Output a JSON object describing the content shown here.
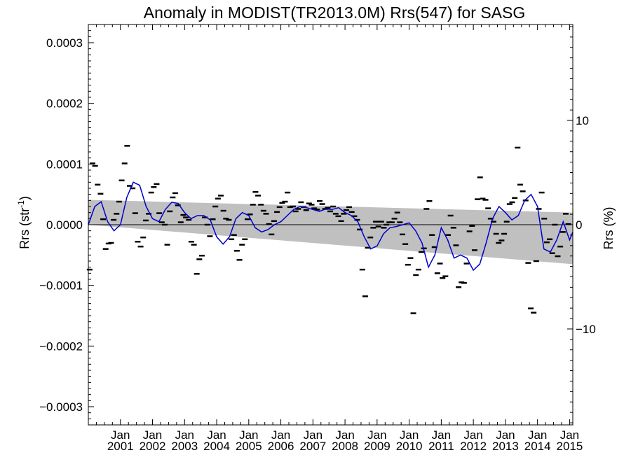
{
  "chart_data": {
    "type": "line",
    "title": "Anomaly in MODIST(TR2013.0M) Rrs(547) for SASG",
    "ylabel_left": "Rrs (str",
    "ylabel_left_sup": "-1",
    "ylabel_left_close": ")",
    "ylabel_right": "Rrs (%)",
    "ylim_left": [
      -0.00033,
      0.00033
    ],
    "ylim_right": [
      -19.2,
      19.2
    ],
    "left_ticks": [
      {
        "value": 0.0003,
        "label": "0.0003"
      },
      {
        "value": 0.0002,
        "label": "0.0002"
      },
      {
        "value": 0.0001,
        "label": "0.0001"
      },
      {
        "value": 0.0,
        "label": "0.0000"
      },
      {
        "value": -0.0001,
        "label": "−0.0001"
      },
      {
        "value": -0.0002,
        "label": "−0.0002"
      },
      {
        "value": -0.0003,
        "label": "−0.0003"
      }
    ],
    "right_ticks": [
      {
        "value": 10,
        "label": "10"
      },
      {
        "value": 0,
        "label": "0"
      },
      {
        "value": -10,
        "label": "−10"
      }
    ],
    "xlim": [
      2000.0,
      2015.1
    ],
    "x_ticks": [
      {
        "year": 2001,
        "month": "Jan",
        "label": "2001"
      },
      {
        "year": 2002,
        "month": "Jan",
        "label": "2002"
      },
      {
        "year": 2003,
        "month": "Jan",
        "label": "2003"
      },
      {
        "year": 2004,
        "month": "Jan",
        "label": "2004"
      },
      {
        "year": 2005,
        "month": "Jan",
        "label": "2005"
      },
      {
        "year": 2006,
        "month": "Jan",
        "label": "2006"
      },
      {
        "year": 2007,
        "month": "Jan",
        "label": "2007"
      },
      {
        "year": 2008,
        "month": "Jan",
        "label": "2008"
      },
      {
        "year": 2009,
        "month": "Jan",
        "label": "2009"
      },
      {
        "year": 2010,
        "month": "Jan",
        "label": "2010"
      },
      {
        "year": 2011,
        "month": "Jan",
        "label": "2011"
      },
      {
        "year": 2012,
        "month": "Jan",
        "label": "2012"
      },
      {
        "year": 2013,
        "month": "Jan",
        "label": "2013"
      },
      {
        "year": 2014,
        "month": "Jan",
        "label": "2014"
      },
      {
        "year": 2015,
        "month": "Jan",
        "label": "2015"
      }
    ],
    "band": {
      "x_start": 2000.0,
      "x_end": 2015.1,
      "upper_start": 4.1e-05,
      "upper_end": 2e-05,
      "lower_start": 0.0,
      "lower_end": -6.5e-05,
      "color": "#c0c0c0"
    },
    "zero_line": 0.0,
    "colors": {
      "smooth_line": "#0000cc",
      "monthly_marks": "#000000",
      "axes": "#000000"
    },
    "series": [
      {
        "kind": "monthly_anomaly",
        "x": [
          2000.04,
          2000.13,
          2000.21,
          2000.29,
          2000.38,
          2000.46,
          2000.54,
          2000.63,
          2000.71,
          2000.79,
          2000.88,
          2000.96,
          2001.04,
          2001.13,
          2001.21,
          2001.29,
          2001.38,
          2001.46,
          2001.54,
          2001.63,
          2001.71,
          2001.79,
          2001.88,
          2001.96,
          2002.04,
          2002.13,
          2002.21,
          2002.29,
          2002.38,
          2002.46,
          2002.54,
          2002.63,
          2002.71,
          2002.79,
          2002.88,
          2002.96,
          2003.04,
          2003.13,
          2003.21,
          2003.29,
          2003.38,
          2003.46,
          2003.54,
          2003.63,
          2003.71,
          2003.79,
          2003.88,
          2003.96,
          2004.04,
          2004.13,
          2004.21,
          2004.29,
          2004.38,
          2004.46,
          2004.54,
          2004.63,
          2004.71,
          2004.79,
          2004.88,
          2004.96,
          2005.04,
          2005.13,
          2005.21,
          2005.29,
          2005.38,
          2005.46,
          2005.54,
          2005.63,
          2005.71,
          2005.79,
          2005.88,
          2005.96,
          2006.04,
          2006.13,
          2006.21,
          2006.29,
          2006.38,
          2006.46,
          2006.54,
          2006.63,
          2006.71,
          2006.79,
          2006.88,
          2006.96,
          2007.04,
          2007.13,
          2007.21,
          2007.29,
          2007.38,
          2007.46,
          2007.54,
          2007.63,
          2007.71,
          2007.79,
          2007.88,
          2007.96,
          2008.04,
          2008.13,
          2008.21,
          2008.29,
          2008.38,
          2008.46,
          2008.54,
          2008.63,
          2008.71,
          2008.79,
          2008.88,
          2008.96,
          2009.04,
          2009.13,
          2009.21,
          2009.29,
          2009.38,
          2009.46,
          2009.54,
          2009.63,
          2009.71,
          2009.79,
          2009.88,
          2009.96,
          2010.04,
          2010.13,
          2010.21,
          2010.29,
          2010.38,
          2010.46,
          2010.54,
          2010.63,
          2010.71,
          2010.79,
          2010.88,
          2010.96,
          2011.04,
          2011.13,
          2011.21,
          2011.29,
          2011.38,
          2011.46,
          2011.54,
          2011.63,
          2011.71,
          2011.79,
          2011.88,
          2011.96,
          2012.04,
          2012.13,
          2012.21,
          2012.29,
          2012.38,
          2012.46,
          2012.54,
          2012.63,
          2012.71,
          2012.79,
          2012.88,
          2012.96,
          2013.04,
          2013.13,
          2013.21,
          2013.29,
          2013.38,
          2013.46,
          2013.54,
          2013.63,
          2013.71,
          2013.79,
          2013.88,
          2013.96,
          2014.04,
          2014.13,
          2014.21,
          2014.29,
          2014.38,
          2014.46,
          2014.54,
          2014.63,
          2014.71,
          2014.79,
          2014.88,
          2014.96
        ],
        "values": [
          -7.4e-05,
          0.000101,
          9.7e-05,
          6.6e-05,
          5.1e-05,
          9e-06,
          -4e-05,
          -3.1e-05,
          -3e-05,
          8e-06,
          1.8e-05,
          3.8e-05,
          7.3e-05,
          0.000101,
          0.00013,
          6.4e-05,
          6e-05,
          1.9e-05,
          -2.8e-05,
          -3.6e-05,
          -2.1e-05,
          7e-06,
          1.8e-05,
          5.3e-05,
          6.2e-05,
          6.7e-05,
          1.9e-05,
          4e-06,
          0.0,
          -3.3e-05,
          2.2e-05,
          4.5e-05,
          5.2e-05,
          3.2e-05,
          4e-06,
          1.6e-05,
          1.2e-05,
          8e-06,
          -2.8e-05,
          -3.3e-05,
          -8.1e-05,
          -5.7e-05,
          -5.1e-05,
          1.2e-05,
          0.0,
          -1.9e-05,
          9e-06,
          3e-05,
          4.3e-05,
          4.8e-05,
          2.3e-05,
          1e-05,
          8e-06,
          -2.4e-05,
          -1.7e-05,
          -4.3e-05,
          -5.8e-05,
          -3.3e-05,
          -2.4e-05,
          9e-06,
          1.7e-05,
          3.3e-05,
          5.4e-05,
          4.8e-05,
          3.3e-05,
          2.3e-05,
          1.8e-05,
          1e-06,
          -1.6e-05,
          6e-06,
          2.1e-05,
          2.9e-05,
          3.6e-05,
          3.8e-05,
          5.3e-05,
          2.9e-05,
          3e-05,
          2.2e-05,
          2.6e-05,
          3.7e-05,
          2.9e-05,
          2.4e-05,
          3.5e-05,
          3.3e-05,
          2.7e-05,
          2.5e-05,
          3.9e-05,
          3.4e-05,
          2.6e-05,
          2.8e-05,
          2.2e-05,
          3e-05,
          1.8e-05,
          1.4e-05,
          6e-06,
          1.8e-05,
          2.4e-05,
          2.9e-05,
          2.1e-05,
          1.4e-05,
          8e-06,
          -8e-06,
          -7.4e-05,
          -0.000118,
          -3.8e-05,
          -2.1e-05,
          -5e-06,
          5e-06,
          -3e-06,
          5e-06,
          -5e-06,
          0.0,
          4e-06,
          4e-06,
          1e-05,
          2e-05,
          4e-06,
          -1.6e-05,
          -3.2e-05,
          -6.6e-05,
          -5.5e-05,
          -0.000146,
          -8.3e-05,
          -7.4e-05,
          -4.5e-05,
          -3.9e-05,
          2.6e-05,
          3.9e-05,
          -1.7e-05,
          -3.7e-05,
          -8e-05,
          -6.4e-05,
          -8.8e-05,
          -8.5e-05,
          -1.7e-05,
          1.5e-05,
          -5e-06,
          -3.4e-05,
          -0.000103,
          -9.5e-05,
          -9.6e-05,
          -6.4e-05,
          -1.1e-05,
          -2e-06,
          -4.2e-05,
          4.2e-05,
          7.8e-05,
          4.3e-05,
          4.1e-05,
          2.7e-05,
          1e-05,
          5e-06,
          -1.5e-05,
          -3e-05,
          -2.6e-05,
          -1.5e-05,
          5e-06,
          3.4e-05,
          3.7e-05,
          4.4e-05,
          0.000127,
          6.6e-05,
          5.5e-05,
          4e-05,
          -6.3e-05,
          -0.000138,
          -0.000145,
          -6e-05,
          2.6e-05,
          5.3e-05,
          1e-05,
          -2.9e-05,
          -2.4e-05,
          -4.7e-05,
          0.0,
          -5.2e-05,
          -3.6e-05,
          -1.2e-05,
          1.8e-05,
          1e-06
        ]
      },
      {
        "kind": "smoothed_anomaly",
        "x": [
          2000.0,
          2000.2,
          2000.4,
          2000.6,
          2000.8,
          2001.0,
          2001.2,
          2001.4,
          2001.6,
          2001.8,
          2002.0,
          2002.2,
          2002.4,
          2002.6,
          2002.8,
          2003.0,
          2003.2,
          2003.4,
          2003.6,
          2003.8,
          2004.0,
          2004.2,
          2004.4,
          2004.6,
          2004.8,
          2005.0,
          2005.2,
          2005.4,
          2005.6,
          2005.8,
          2006.0,
          2006.2,
          2006.4,
          2006.6,
          2006.8,
          2007.0,
          2007.2,
          2007.4,
          2007.6,
          2007.8,
          2008.0,
          2008.2,
          2008.4,
          2008.6,
          2008.8,
          2009.0,
          2009.2,
          2009.4,
          2009.6,
          2009.8,
          2010.0,
          2010.2,
          2010.4,
          2010.6,
          2010.8,
          2011.0,
          2011.2,
          2011.4,
          2011.6,
          2011.8,
          2012.0,
          2012.2,
          2012.4,
          2012.6,
          2012.8,
          2013.0,
          2013.2,
          2013.4,
          2013.6,
          2013.8,
          2014.0,
          2014.2,
          2014.4,
          2014.6,
          2014.8,
          2015.0,
          2015.1
        ],
        "values": [
          0.0,
          3e-05,
          3.8e-05,
          5e-06,
          -1e-05,
          0.0,
          4.5e-05,
          7e-05,
          6.5e-05,
          3e-05,
          1e-05,
          5e-06,
          2.5e-05,
          3.7e-05,
          3.5e-05,
          2e-05,
          1e-05,
          1.5e-05,
          1.5e-05,
          8e-06,
          -2e-05,
          -3.2e-05,
          -2e-05,
          1e-05,
          2e-05,
          1.5e-05,
          -5e-06,
          -1.2e-05,
          -8e-06,
          0.0,
          5e-06,
          1.5e-05,
          2.5e-05,
          3e-05,
          2.8e-05,
          2.5e-05,
          2.2e-05,
          2.6e-05,
          2.5e-05,
          2.8e-05,
          2e-05,
          1.5e-05,
          5e-06,
          -2e-05,
          -4e-05,
          -3.5e-05,
          -1.5e-05,
          -5e-06,
          -3e-06,
          0.0,
          3e-06,
          -1e-05,
          -3e-05,
          -7e-05,
          -5e-05,
          -5e-06,
          -2.5e-05,
          -5.5e-05,
          -5e-05,
          -5.5e-05,
          -7.5e-05,
          -6.5e-05,
          -3e-05,
          1e-05,
          3e-05,
          2e-05,
          8e-06,
          1.5e-05,
          4e-05,
          5e-05,
          3e-05,
          -4e-05,
          -4.5e-05,
          -2.5e-05,
          5e-06,
          -2.5e-05,
          -1.2e-05
        ]
      }
    ]
  }
}
